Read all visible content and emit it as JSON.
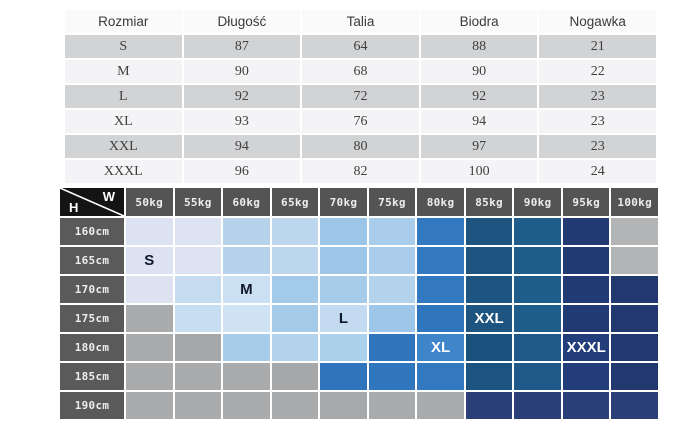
{
  "colors": {
    "page_background": "#ffffff",
    "table_row_gray": "#d2d3d5",
    "table_row_light": "#f4f4f6",
    "matrix_header_bg": "#545454",
    "matrix_row_header_bg": "#5a5a5a",
    "matrix_corner_bg": "#141414",
    "grid_line": "#ffffff"
  },
  "chart_data": [
    {
      "type": "table",
      "title": "Size measurements table (cm)",
      "columns": [
        "Rozmiar",
        "Długość",
        "Talia",
        "Biodra",
        "Nogawka"
      ],
      "rows": [
        [
          "S",
          "87",
          "64",
          "88",
          "21"
        ],
        [
          "M",
          "90",
          "68",
          "90",
          "22"
        ],
        [
          "L",
          "92",
          "72",
          "92",
          "23"
        ],
        [
          "XL",
          "93",
          "76",
          "94",
          "23"
        ],
        [
          "XXL",
          "94",
          "80",
          "97",
          "23"
        ],
        [
          "XXXL",
          "96",
          "82",
          "100",
          "24"
        ]
      ]
    },
    {
      "type": "heatmap",
      "title": "Size by height and weight",
      "corner": {
        "top_right": "W",
        "bottom_left": "H"
      },
      "x": [
        "50kg",
        "55kg",
        "60kg",
        "65kg",
        "70kg",
        "75kg",
        "80kg",
        "85kg",
        "90kg",
        "95kg",
        "100kg"
      ],
      "y": [
        "160cm",
        "165cm",
        "170cm",
        "175cm",
        "180cm",
        "185cm",
        "190cm"
      ],
      "cell_colors": [
        [
          "#dce2f1",
          "#dee3f3",
          "#b7d3eb",
          "#bdd7ee",
          "#9dc5e7",
          "#a9cdea",
          "#3379c1",
          "#1d5480",
          "#1f5d8b",
          "#213a73",
          "#b2b4b6"
        ],
        [
          "#dce2f1",
          "#dee3f3",
          "#b7d3eb",
          "#bdd7ee",
          "#9dc5e7",
          "#a9cdea",
          "#3379c1",
          "#1d5480",
          "#1f5d8b",
          "#213a73",
          "#b2b4b6"
        ],
        [
          "#dde2f1",
          "#c5dbf0",
          "#cce0f4",
          "#a3cae9",
          "#a7ccea",
          "#b3d3ed",
          "#3379c1",
          "#1d5480",
          "#1f5d8b",
          "#213a73",
          "#22396f"
        ],
        [
          "#a9abad",
          "#c7ddf2",
          "#d0e3f5",
          "#a5cbe9",
          "#c3daf1",
          "#9dc6e8",
          "#3076bf",
          "#1d5480",
          "#1f5d8b",
          "#213a73",
          "#22396f"
        ],
        [
          "#a9abad",
          "#a5a7a9",
          "#a7cdea",
          "#b3d3ed",
          "#abd0eb",
          "#2f74bd",
          "#3f85c9",
          "#17517c",
          "#1e5989",
          "#223d79",
          "#22396f"
        ],
        [
          "#a9abad",
          "#a9abad",
          "#a9abad",
          "#a5a7a9",
          "#2f74bd",
          "#3076bf",
          "#3379c1",
          "#1b5480",
          "#1e5989",
          "#223d79",
          "#22396f"
        ],
        [
          "#a9abad",
          "#a9abad",
          "#a9abad",
          "#a9abad",
          "#a6a8aa",
          "#a9abad",
          "#a9abad",
          "#2a3f77",
          "#2a3f77",
          "#2a3f77",
          "#2a3f77"
        ]
      ],
      "annotations": [
        {
          "row": 1,
          "col": 0,
          "label": "S",
          "style": "dark"
        },
        {
          "row": 2,
          "col": 2,
          "label": "M",
          "style": "dark"
        },
        {
          "row": 3,
          "col": 4,
          "label": "L",
          "style": "dark"
        },
        {
          "row": 3,
          "col": 7,
          "label": "XXL",
          "style": "light"
        },
        {
          "row": 4,
          "col": 6,
          "label": "XL",
          "style": "light"
        },
        {
          "row": 4,
          "col": 9,
          "label": "XXXL",
          "style": "light"
        }
      ]
    }
  ]
}
